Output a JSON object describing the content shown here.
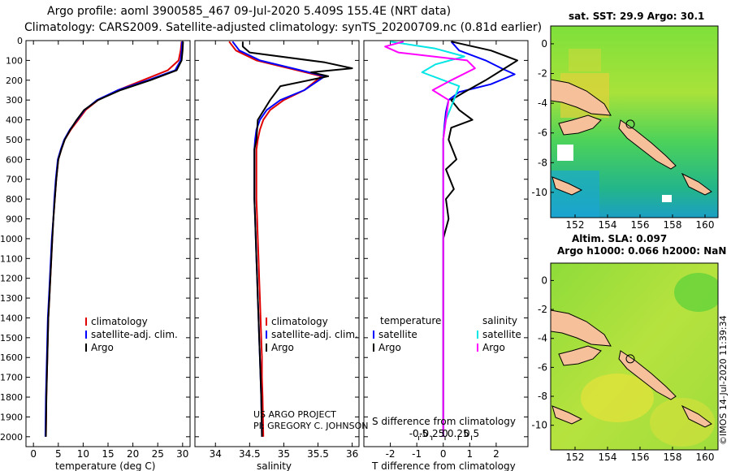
{
  "header": {
    "line1": "Argo profile: aoml 3900585_467 09-Jul-2020 5.409S 155.4E (NRT data)",
    "line2": "Climatology: CARS2009. Satellite-adjusted climatology: synTS_20200709.nc (0.81d earlier)"
  },
  "credit": "©IMOS 14-Jul-2020 11:39:34",
  "colors": {
    "climatology": "#e00000",
    "satellite": "#0000ff",
    "argo": "#000000",
    "sal_satellite": "#00e5e5",
    "sal_argo": "#ff00ff",
    "land": "#f5c09a",
    "bg": "#ffffff"
  },
  "depth_axis": {
    "ylim": [
      2050,
      0
    ],
    "ticks": [
      0,
      100,
      200,
      300,
      400,
      500,
      600,
      700,
      800,
      900,
      1000,
      1100,
      1200,
      1300,
      1400,
      1500,
      1600,
      1700,
      1800,
      1900,
      2000
    ]
  },
  "chart_data": [
    {
      "id": "temperature",
      "type": "line",
      "xlabel": "temperature (deg C)",
      "xlim": [
        -1.5,
        31.5
      ],
      "xticks": [
        0,
        5,
        10,
        15,
        20,
        25,
        30
      ],
      "legend": [
        "climatology",
        "satellite-adj. clim.",
        "Argo"
      ],
      "series": [
        {
          "name": "climatology",
          "color": "#e00000",
          "x": [
            29.8,
            29.6,
            29.2,
            27,
            22,
            17,
            13,
            10.5,
            9,
            7.5,
            6.3,
            5.6,
            5,
            4.6,
            4.3,
            4,
            3.8,
            3.6,
            3.4,
            3.2,
            3,
            2.9,
            2.8,
            2.7,
            2.6,
            2.5
          ],
          "y": [
            5,
            50,
            100,
            150,
            200,
            250,
            300,
            350,
            400,
            450,
            500,
            550,
            600,
            700,
            800,
            900,
            1000,
            1100,
            1200,
            1300,
            1400,
            1500,
            1600,
            1700,
            1800,
            2000
          ]
        },
        {
          "name": "satellite-adj. clim.",
          "color": "#0000ff",
          "x": [
            29.9,
            29.8,
            29.6,
            28.5,
            23,
            17,
            12.8,
            10.3,
            8.8,
            7.3,
            6.2,
            5.5,
            4.9,
            4.5,
            4.2,
            4,
            3.7,
            3.5,
            3.3,
            3.1,
            2.9,
            2.8,
            2.7,
            2.6,
            2.5,
            2.4
          ],
          "y": [
            5,
            50,
            100,
            150,
            200,
            250,
            300,
            350,
            400,
            450,
            500,
            550,
            600,
            700,
            800,
            900,
            1000,
            1100,
            1200,
            1300,
            1400,
            1500,
            1600,
            1700,
            1800,
            2000
          ]
        },
        {
          "name": "Argo",
          "color": "#000000",
          "x": [
            30.1,
            30,
            29.8,
            28.8,
            23.5,
            17.5,
            13,
            10.2,
            8.7,
            7.4,
            6.3,
            5.6,
            5,
            4.6,
            4.3,
            4,
            3.8,
            3.6,
            3.4,
            3.2,
            3,
            2.9,
            2.8,
            2.7,
            2.6,
            2.5
          ],
          "y": [
            5,
            50,
            100,
            150,
            200,
            250,
            300,
            350,
            400,
            450,
            500,
            550,
            600,
            700,
            800,
            900,
            1000,
            1100,
            1200,
            1300,
            1400,
            1500,
            1600,
            1700,
            1800,
            2000
          ]
        }
      ]
    },
    {
      "id": "salinity",
      "type": "line",
      "xlabel": "salinity",
      "xlim": [
        33.7,
        36.1
      ],
      "xticks": [
        34,
        34.5,
        35,
        35.5,
        36
      ],
      "xticklabels": [
        "34",
        "34.5",
        "35",
        "35.5",
        "36"
      ],
      "legend": [
        "climatology",
        "satellite-adj. clim.",
        "Argo"
      ],
      "annotation": [
        "US ARGO PROJECT",
        "PI: GREGORY C. JOHNSON"
      ],
      "series": [
        {
          "name": "climatology",
          "color": "#e00000",
          "x": [
            34.2,
            34.3,
            34.6,
            35.2,
            35.55,
            35.3,
            35,
            34.8,
            34.7,
            34.65,
            34.62,
            34.6,
            34.6,
            34.6,
            34.6,
            34.61,
            34.62,
            34.63,
            34.64,
            34.65,
            34.66,
            34.67,
            34.68,
            34.68,
            34.69,
            34.7
          ],
          "y": [
            5,
            50,
            100,
            150,
            180,
            250,
            300,
            350,
            400,
            450,
            500,
            550,
            600,
            700,
            800,
            900,
            1000,
            1100,
            1200,
            1300,
            1400,
            1500,
            1600,
            1700,
            1800,
            2000
          ]
        },
        {
          "name": "satellite-adj. clim.",
          "color": "#0000ff",
          "x": [
            34.25,
            34.35,
            34.65,
            35.25,
            35.6,
            35.3,
            34.95,
            34.75,
            34.65,
            34.6,
            34.58,
            34.57,
            34.57,
            34.57,
            34.57,
            34.58,
            34.59,
            34.6,
            34.61,
            34.62,
            34.63,
            34.64,
            34.65,
            34.66,
            34.67,
            34.68
          ],
          "y": [
            5,
            50,
            100,
            150,
            180,
            250,
            300,
            350,
            400,
            450,
            500,
            550,
            600,
            700,
            800,
            900,
            1000,
            1100,
            1200,
            1300,
            1400,
            1500,
            1600,
            1700,
            1800,
            2000
          ]
        },
        {
          "name": "Argo",
          "color": "#000000",
          "x": [
            34.4,
            34.4,
            34.5,
            35.6,
            36,
            35.4,
            35.65,
            34.95,
            34.8,
            34.62,
            34.6,
            34.57,
            34.57,
            34.57,
            34.57,
            34.58,
            34.59,
            34.6,
            34.61,
            34.62,
            34.63,
            34.64,
            34.65,
            34.66,
            34.67,
            34.68
          ],
          "y": [
            5,
            30,
            60,
            110,
            140,
            160,
            180,
            230,
            300,
            400,
            500,
            550,
            600,
            700,
            800,
            900,
            1000,
            1100,
            1200,
            1300,
            1400,
            1500,
            1600,
            1700,
            1800,
            2000
          ]
        }
      ]
    },
    {
      "id": "difference",
      "type": "line",
      "xlabel": "T difference from climatology",
      "xlim": [
        -3.0,
        3.2
      ],
      "xticks": [
        -2,
        -1,
        0,
        1,
        2
      ],
      "secondary_axis": {
        "label": "S difference from climatology",
        "ticks": [
          -0.5,
          -0.25,
          0,
          0.25,
          0.5
        ]
      },
      "legend_temperature": [
        "satellite",
        "Argo"
      ],
      "legend_salinity": [
        "satellite",
        "Argo"
      ],
      "legend_titles": [
        "temperature",
        "salinity"
      ],
      "series": [
        {
          "name": "temperature satellite",
          "color": "#0000ff",
          "x": [
            0.3,
            0.6,
            1.6,
            2.2,
            2.7,
            1.8,
            0.6,
            0.2,
            0.1,
            0.05,
            0,
            0,
            0,
            0,
            0,
            0,
            0,
            0,
            0,
            0,
            0
          ],
          "y": [
            5,
            50,
            100,
            140,
            170,
            220,
            260,
            300,
            360,
            420,
            500,
            600,
            800,
            1000,
            1200,
            1400,
            1500,
            1600,
            1700,
            1800,
            2000
          ]
        },
        {
          "name": "temperature Argo",
          "color": "#000000",
          "x": [
            0.3,
            1.8,
            2.8,
            2.2,
            1.6,
            0.8,
            0.3,
            0.6,
            1.1,
            0.3,
            0.2,
            0.5,
            0.1,
            0.4,
            0.1,
            0.2,
            0,
            0,
            0,
            0,
            0
          ],
          "y": [
            5,
            50,
            100,
            150,
            200,
            260,
            300,
            350,
            400,
            440,
            500,
            600,
            650,
            750,
            800,
            900,
            1000,
            1200,
            1400,
            1700,
            2000
          ]
        },
        {
          "name": "salinity satellite",
          "color": "#00e5e5",
          "x": [
            -2,
            -0.3,
            0.8,
            -0.3,
            -0.8,
            0.6,
            0.4,
            0.1,
            0,
            0,
            0,
            0,
            0,
            0,
            0,
            0,
            0,
            0,
            0,
            0
          ],
          "y": [
            5,
            40,
            80,
            120,
            160,
            230,
            300,
            400,
            500,
            600,
            700,
            800,
            1000,
            1200,
            1400,
            1600,
            1700,
            1800,
            1900,
            2000
          ]
        },
        {
          "name": "salinity Argo",
          "color": "#ff00ff",
          "x": [
            -1.5,
            -2.2,
            -1.7,
            0.9,
            1.2,
            0.3,
            -0.4,
            0.2,
            0.1,
            0,
            0,
            0,
            0,
            0,
            0,
            0,
            0,
            0,
            0,
            0
          ],
          "y": [
            5,
            30,
            60,
            100,
            140,
            200,
            250,
            300,
            400,
            500,
            600,
            700,
            800,
            1000,
            1200,
            1400,
            1600,
            1800,
            1900,
            2000
          ]
        }
      ]
    }
  ],
  "maps": {
    "sst": {
      "title": "sat. SST: 29.9 Argo: 30.1",
      "xticks": [
        152,
        154,
        156,
        158,
        160
      ],
      "yticks": [
        0,
        -2,
        -4,
        -6,
        -8,
        -10
      ],
      "lon_range": [
        150.5,
        160.8
      ],
      "lat_range": [
        -11.7,
        1.2
      ],
      "argo_position": {
        "lon": 155.4,
        "lat": -5.409
      }
    },
    "sla": {
      "title_line1": "Altim. SLA: 0.097",
      "title_line2": "Argo h1000: 0.066 h2000: NaN",
      "xticks": [
        152,
        154,
        156,
        158,
        160
      ],
      "yticks": [
        0,
        -2,
        -4,
        -6,
        -8,
        -10
      ],
      "lon_range": [
        150.5,
        160.8
      ],
      "lat_range": [
        -11.7,
        1.2
      ],
      "argo_position": {
        "lon": 155.4,
        "lat": -5.409
      }
    }
  }
}
